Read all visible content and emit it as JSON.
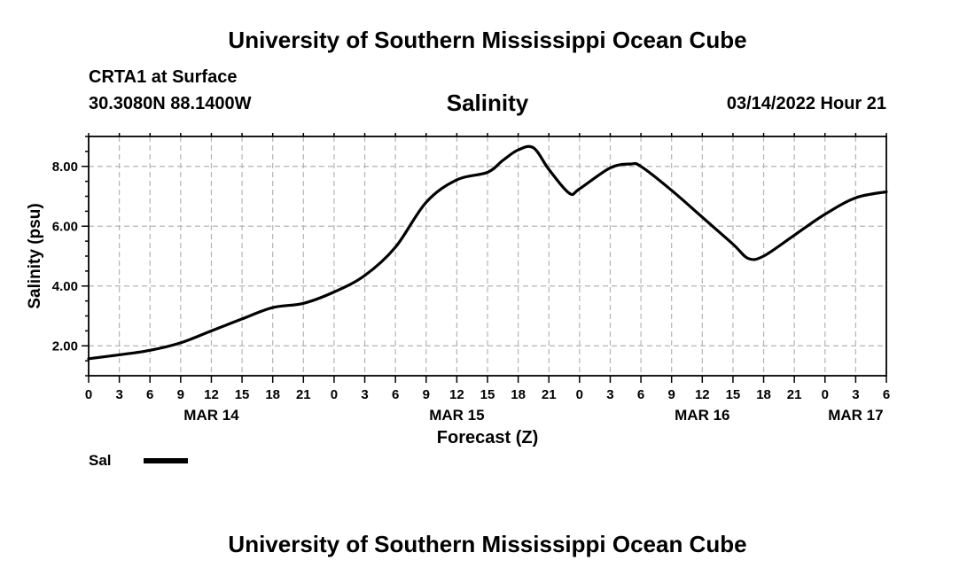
{
  "header": {
    "title_top": "University of Southern Mississippi Ocean Cube",
    "title_bottom": "University of Southern Mississippi Ocean Cube",
    "station": "CRTA1 at Surface",
    "coordinates": "30.3080N  88.1400W",
    "parameter": "Salinity",
    "datetime": "03/14/2022 Hour 21"
  },
  "legend": {
    "label": "Sal",
    "color": "#000000"
  },
  "chart_data": {
    "type": "line",
    "title": "Salinity",
    "xlabel": "Forecast (Z)",
    "ylabel": "Salinity (psu)",
    "xlim": [
      0,
      78
    ],
    "ylim": [
      1.0,
      9.0
    ],
    "grid": true,
    "x_tick_values": [
      0,
      3,
      6,
      9,
      12,
      15,
      18,
      21,
      24,
      27,
      30,
      33,
      36,
      39,
      42,
      45,
      48,
      51,
      54,
      57,
      60,
      63,
      66,
      69,
      72,
      75,
      78
    ],
    "x_tick_labels": [
      "0",
      "3",
      "6",
      "9",
      "12",
      "15",
      "18",
      "21",
      "0",
      "3",
      "6",
      "9",
      "12",
      "15",
      "18",
      "21",
      "0",
      "3",
      "6",
      "9",
      "12",
      "15",
      "18",
      "21",
      "0",
      "3",
      "6"
    ],
    "date_labels": [
      {
        "x": 12,
        "label": "MAR 14"
      },
      {
        "x": 36,
        "label": "MAR 15"
      },
      {
        "x": 60,
        "label": "MAR 16"
      },
      {
        "x": 75,
        "label": "MAR 17"
      }
    ],
    "y_ticks": [
      2.0,
      4.0,
      6.0,
      8.0
    ],
    "y_tick_labels": [
      "2.00",
      "4.00",
      "6.00",
      "8.00"
    ],
    "series": [
      {
        "name": "Sal",
        "color": "#000000",
        "x": [
          0,
          3,
          6,
          9,
          12,
          15,
          18,
          21,
          24,
          27,
          30,
          33,
          36,
          39,
          40.5,
          42,
          43.5,
          45,
          47,
          48,
          51,
          53,
          54,
          57,
          60,
          63,
          64.5,
          66,
          69,
          72,
          75,
          78
        ],
        "values": [
          1.57,
          1.7,
          1.85,
          2.1,
          2.5,
          2.9,
          3.28,
          3.42,
          3.8,
          4.35,
          5.3,
          6.8,
          7.55,
          7.8,
          8.2,
          8.55,
          8.62,
          7.9,
          7.1,
          7.25,
          7.95,
          8.08,
          8.0,
          7.2,
          6.3,
          5.4,
          4.92,
          5.0,
          5.7,
          6.4,
          6.95,
          7.15
        ]
      }
    ]
  }
}
